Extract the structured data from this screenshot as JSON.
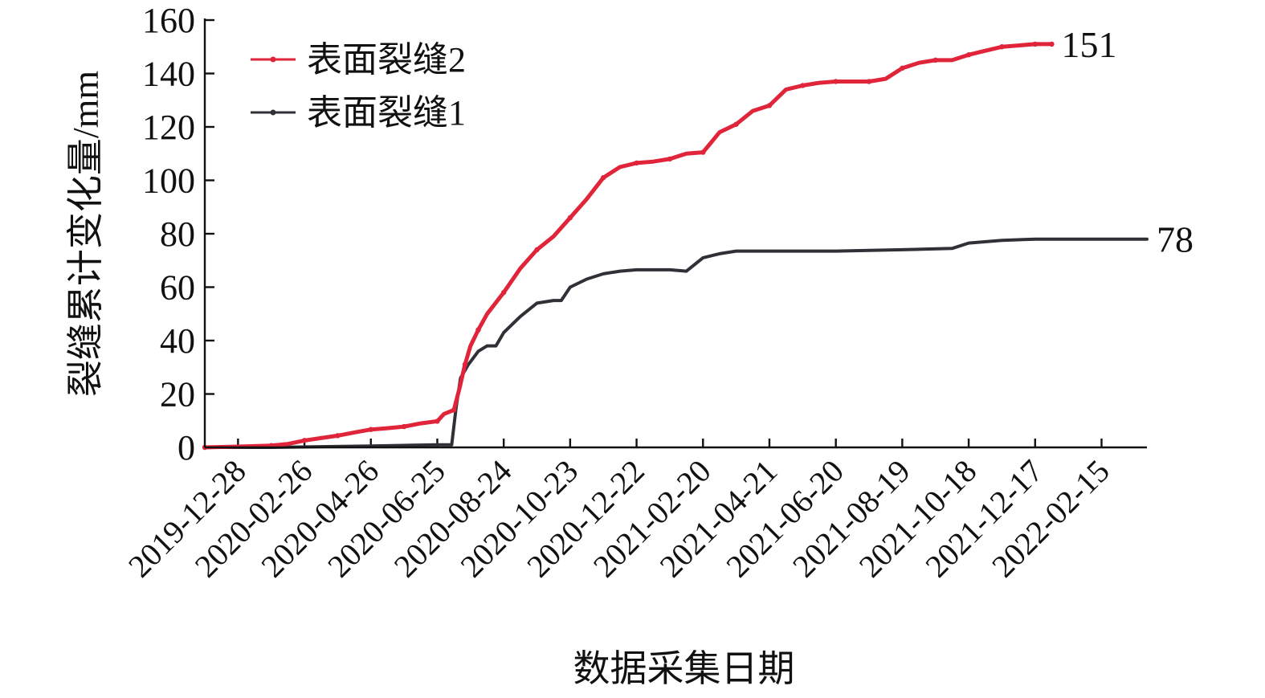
{
  "chart_data": {
    "type": "line",
    "xlabel": "数据采集日期",
    "ylabel": "裂缝累计变化量/mm",
    "ylim": [
      0,
      160
    ],
    "yticks": [
      0,
      20,
      40,
      60,
      80,
      100,
      120,
      140,
      160
    ],
    "xlim": [
      "2019-11-28",
      "2022-03-28"
    ],
    "xticks": [
      "2019-12-28",
      "2020-02-26",
      "2020-04-26",
      "2020-06-25",
      "2020-08-24",
      "2020-10-23",
      "2020-12-22",
      "2021-02-20",
      "2021-04-21",
      "2021-06-20",
      "2021-08-19",
      "2021-10-18",
      "2021-12-17",
      "2022-02-15"
    ],
    "grid": false,
    "legend_position": "top-left",
    "series": [
      {
        "name": "表面裂缝2",
        "color": "#e0243a",
        "end_label": "151",
        "points": [
          [
            "2019-11-28",
            0
          ],
          [
            "2019-12-28",
            0.3
          ],
          [
            "2020-01-27",
            0.7
          ],
          [
            "2020-02-11",
            1.3
          ],
          [
            "2020-02-26",
            2.6
          ],
          [
            "2020-03-12",
            3.5
          ],
          [
            "2020-03-27",
            4.4
          ],
          [
            "2020-04-11",
            5.6
          ],
          [
            "2020-04-26",
            6.7
          ],
          [
            "2020-05-11",
            7.2
          ],
          [
            "2020-05-26",
            7.8
          ],
          [
            "2020-06-10",
            9.0
          ],
          [
            "2020-06-25",
            9.8
          ],
          [
            "2020-07-01",
            12.5
          ],
          [
            "2020-07-10",
            14.0
          ],
          [
            "2020-07-15",
            22.0
          ],
          [
            "2020-07-20",
            31.0
          ],
          [
            "2020-07-25",
            38.0
          ],
          [
            "2020-08-01",
            44.0
          ],
          [
            "2020-08-09",
            50.0
          ],
          [
            "2020-08-24",
            58.0
          ],
          [
            "2020-09-08",
            67.0
          ],
          [
            "2020-09-23",
            74.0
          ],
          [
            "2020-10-08",
            79.0
          ],
          [
            "2020-10-23",
            86.0
          ],
          [
            "2020-11-07",
            93.0
          ],
          [
            "2020-11-22",
            101.0
          ],
          [
            "2020-12-07",
            105.0
          ],
          [
            "2020-12-22",
            106.5
          ],
          [
            "2021-01-06",
            107.0
          ],
          [
            "2021-01-21",
            108.0
          ],
          [
            "2021-02-05",
            110.0
          ],
          [
            "2021-02-20",
            110.5
          ],
          [
            "2021-03-07",
            118.0
          ],
          [
            "2021-03-22",
            121.0
          ],
          [
            "2021-04-06",
            126.0
          ],
          [
            "2021-04-21",
            128.0
          ],
          [
            "2021-05-06",
            134.0
          ],
          [
            "2021-05-21",
            135.5
          ],
          [
            "2021-06-05",
            136.5
          ],
          [
            "2021-06-20",
            137.0
          ],
          [
            "2021-07-05",
            137.0
          ],
          [
            "2021-07-20",
            137.0
          ],
          [
            "2021-08-04",
            138.0
          ],
          [
            "2021-08-19",
            142.0
          ],
          [
            "2021-09-03",
            144.0
          ],
          [
            "2021-09-18",
            145.0
          ],
          [
            "2021-10-03",
            145.0
          ],
          [
            "2021-10-18",
            147.0
          ],
          [
            "2021-11-02",
            148.5
          ],
          [
            "2021-11-17",
            150.0
          ],
          [
            "2021-12-02",
            150.5
          ],
          [
            "2021-12-17",
            151.0
          ],
          [
            "2022-01-01",
            151.0
          ]
        ]
      },
      {
        "name": "表面裂缝1",
        "color": "#2f3136",
        "end_label": "78",
        "points": [
          [
            "2019-11-28",
            0
          ],
          [
            "2020-01-27",
            0
          ],
          [
            "2020-04-26",
            0.5
          ],
          [
            "2020-06-25",
            1.0
          ],
          [
            "2020-07-08",
            1.0
          ],
          [
            "2020-07-12",
            15.0
          ],
          [
            "2020-07-16",
            26.0
          ],
          [
            "2020-07-23",
            31.0
          ],
          [
            "2020-08-01",
            36.0
          ],
          [
            "2020-08-09",
            38.0
          ],
          [
            "2020-08-17",
            38.0
          ],
          [
            "2020-08-24",
            43.0
          ],
          [
            "2020-09-08",
            49.0
          ],
          [
            "2020-09-23",
            54.0
          ],
          [
            "2020-10-08",
            55.0
          ],
          [
            "2020-10-15",
            55.0
          ],
          [
            "2020-10-23",
            60.0
          ],
          [
            "2020-11-07",
            63.0
          ],
          [
            "2020-11-22",
            65.0
          ],
          [
            "2020-12-07",
            66.0
          ],
          [
            "2020-12-22",
            66.5
          ],
          [
            "2021-01-21",
            66.5
          ],
          [
            "2021-02-05",
            66.0
          ],
          [
            "2021-02-20",
            71.0
          ],
          [
            "2021-03-07",
            72.5
          ],
          [
            "2021-03-22",
            73.5
          ],
          [
            "2021-04-21",
            73.5
          ],
          [
            "2021-06-20",
            73.5
          ],
          [
            "2021-08-19",
            74.0
          ],
          [
            "2021-10-03",
            74.5
          ],
          [
            "2021-10-18",
            76.5
          ],
          [
            "2021-11-17",
            77.5
          ],
          [
            "2021-12-17",
            78.0
          ],
          [
            "2022-01-16",
            78.0
          ],
          [
            "2022-02-15",
            78.0
          ],
          [
            "2022-03-28",
            78.0
          ]
        ]
      }
    ]
  }
}
